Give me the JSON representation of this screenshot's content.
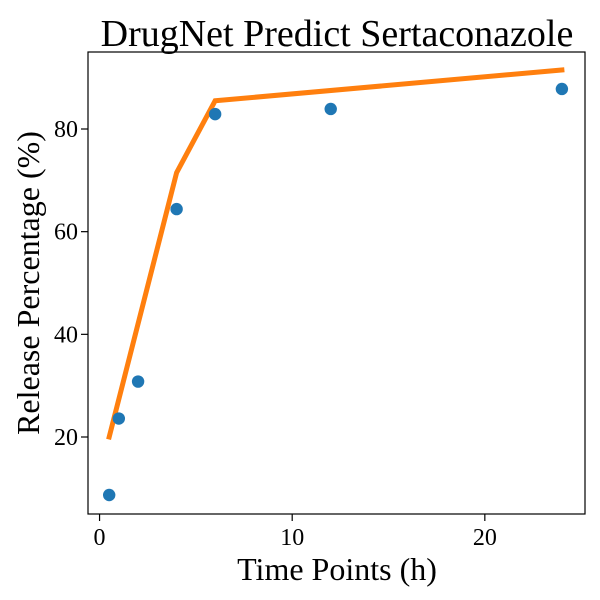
{
  "chart_data": {
    "type": "scatter",
    "title": "DrugNet Predict Sertaconazole",
    "xlabel": "Time Points (h)",
    "ylabel": "Release Percentage (%)",
    "xlim": [
      -0.6,
      25.2
    ],
    "ylim": [
      5,
      95
    ],
    "xticks": [
      0,
      10,
      20
    ],
    "yticks": [
      20,
      40,
      60,
      80
    ],
    "grid": false,
    "series": [
      {
        "type": "scatter",
        "color": "#1f77b4",
        "x": [
          0.5,
          1,
          2,
          4,
          6,
          12,
          24
        ],
        "y": [
          8.7,
          23.6,
          30.8,
          64.4,
          82.9,
          83.9,
          87.8
        ]
      },
      {
        "type": "line",
        "color": "#ff7f0e",
        "x": [
          0.5,
          4,
          6,
          24
        ],
        "y": [
          20,
          71.5,
          85.5,
          91.5
        ]
      }
    ]
  }
}
